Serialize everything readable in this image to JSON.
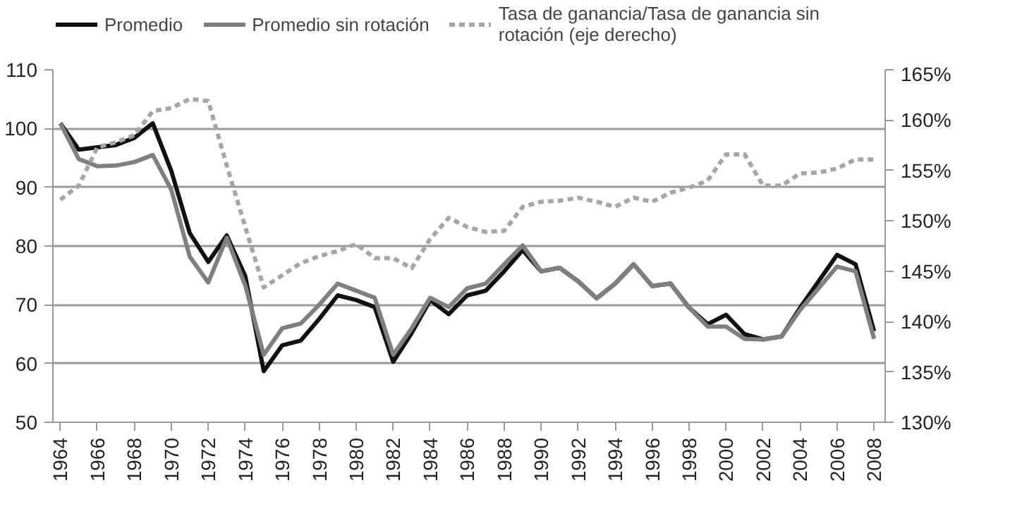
{
  "chart_data": {
    "type": "line",
    "x": [
      1964,
      1965,
      1966,
      1967,
      1968,
      1969,
      1970,
      1971,
      1972,
      1973,
      1974,
      1975,
      1976,
      1977,
      1978,
      1979,
      1980,
      1981,
      1982,
      1983,
      1984,
      1985,
      1986,
      1987,
      1988,
      1989,
      1990,
      1991,
      1992,
      1993,
      1994,
      1995,
      1996,
      1997,
      1998,
      1999,
      2000,
      2001,
      2002,
      2003,
      2004,
      2005,
      2006,
      2007,
      2008
    ],
    "series": [
      {
        "name": "Promedio",
        "color": "#111111",
        "line_style": "solid",
        "values": [
          100.9,
          96.4,
          96.8,
          97.2,
          98.4,
          100.9,
          92.8,
          82.2,
          77.3,
          81.8,
          74.9,
          58.7,
          63.1,
          63.9,
          67.6,
          71.6,
          70.8,
          69.6,
          60.3,
          65.2,
          70.8,
          68.4,
          71.6,
          72.4,
          75.7,
          79.3,
          75.7,
          76.3,
          74,
          71.1,
          73.6,
          76.9,
          73.2,
          73.6,
          69.5,
          66.7,
          68.3,
          65,
          64.1,
          64.6,
          69.5,
          74,
          78.5,
          76.9,
          65.5
        ]
      },
      {
        "name": "Promedio sin rotación",
        "color": "#7f7f7f",
        "line_style": "solid",
        "values": [
          100.9,
          94.8,
          93.6,
          93.7,
          94.3,
          95.5,
          89.6,
          78.2,
          73.8,
          81.4,
          73.3,
          61.5,
          66,
          66.8,
          70,
          73.6,
          72.4,
          71.2,
          61.5,
          66,
          71.2,
          69.6,
          72.8,
          73.6,
          76.9,
          80.1,
          75.7,
          76.3,
          74,
          71.1,
          73.6,
          76.9,
          73.2,
          73.6,
          69.5,
          66.3,
          66.3,
          64.2,
          64.1,
          64.6,
          69.1,
          72.8,
          76.5,
          75.7,
          64.2
        ]
      },
      {
        "name": "Tasa de ganancia/Tasa de ganancia sin rotación (eje derecho)",
        "color": "#a6a6a6",
        "line_style": "dashed",
        "axis": "y2",
        "values": [
          152.1,
          153.5,
          157.3,
          157.8,
          158.5,
          160.9,
          161.2,
          162.1,
          161.9,
          155.5,
          149.4,
          143.4,
          144.6,
          145.8,
          146.5,
          147.0,
          147.7,
          146.3,
          146.3,
          145.3,
          148.2,
          150.3,
          149.4,
          148.9,
          149.0,
          151.4,
          151.9,
          152.0,
          152.3,
          151.9,
          151.4,
          152.3,
          151.9,
          152.8,
          153.3,
          154.0,
          156.6,
          156.6,
          153.5,
          153.5,
          154.7,
          154.8,
          155.2,
          156.1,
          156.1
        ]
      }
    ],
    "xlim": [
      1963.6,
      2008.6
    ],
    "xticks": [
      1964,
      1966,
      1968,
      1970,
      1972,
      1974,
      1976,
      1978,
      1980,
      1982,
      1984,
      1986,
      1988,
      1990,
      1992,
      1994,
      1996,
      1998,
      2000,
      2002,
      2004,
      2006,
      2008
    ],
    "ylim": [
      50,
      110
    ],
    "yticks": [
      50,
      60,
      70,
      80,
      90,
      100,
      110
    ],
    "y2lim": [
      130,
      165
    ],
    "y2ticks": [
      {
        "value": 130,
        "label": "130%"
      },
      {
        "value": 135,
        "label": "135%"
      },
      {
        "value": 140,
        "label": "140%"
      },
      {
        "value": 145,
        "label": "145%"
      },
      {
        "value": 150,
        "label": "150%"
      },
      {
        "value": 155,
        "label": "155%"
      },
      {
        "value": 160,
        "label": "160%"
      },
      {
        "value": 165,
        "label": "165%"
      }
    ],
    "grid": "y",
    "legend": "top"
  }
}
